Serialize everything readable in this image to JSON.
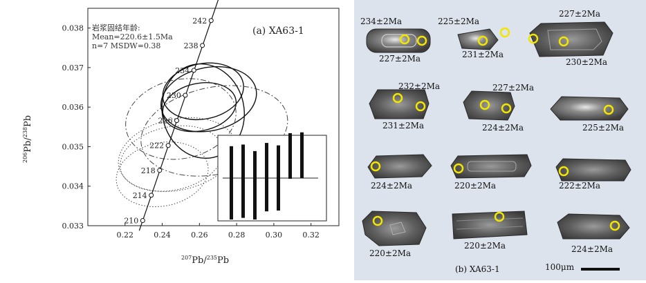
{
  "panel_a": {
    "panel_label": "(a) XA63-1",
    "annotation": {
      "title": "岩浆固结年龄:",
      "mean": "Mean=220.6±1.5Ma",
      "stats": "n=7 MSDW=0.38"
    },
    "axes": {
      "xlabel_num_sup": "207",
      "xlabel_num": "Pb/",
      "xlabel_den_sup": "235",
      "xlabel_den": "Pb",
      "ylabel_num_sup": "206",
      "ylabel_num": "Pb/",
      "ylabel_den_sup": "238",
      "ylabel_den": "Pb"
    }
  },
  "chart_data": {
    "type": "scatter",
    "subtype": "concordia",
    "xlabel": "207Pb/235Pb",
    "ylabel": "206Pb/238Pb",
    "xlim": [
      0.2,
      0.335
    ],
    "ylim": [
      0.033,
      0.0385
    ],
    "x_ticks": [
      "0.22",
      "0.24",
      "0.26",
      "0.28",
      "0.30",
      "0.32"
    ],
    "y_ticks": [
      "0.033",
      "0.034",
      "0.035",
      "0.036",
      "0.037",
      "0.038"
    ],
    "concordia_ticks": [
      {
        "age": "210",
        "x": 0.2295,
        "y": 0.03313
      },
      {
        "age": "214",
        "x": 0.2341,
        "y": 0.03377
      },
      {
        "age": "218",
        "x": 0.2386,
        "y": 0.0344
      },
      {
        "age": "222",
        "x": 0.2432,
        "y": 0.03503
      },
      {
        "age": "226",
        "x": 0.2478,
        "y": 0.03566
      },
      {
        "age": "230",
        "x": 0.2524,
        "y": 0.0363
      },
      {
        "age": "234",
        "x": 0.257,
        "y": 0.03693
      },
      {
        "age": "238",
        "x": 0.2616,
        "y": 0.03756
      },
      {
        "age": "242",
        "x": 0.2663,
        "y": 0.03819
      }
    ],
    "error_ellipses": [
      {
        "cx": 0.262,
        "cy": 0.0364,
        "rx": 0.022,
        "ry": 0.0007,
        "style": "solid"
      },
      {
        "cx": 0.265,
        "cy": 0.0362,
        "rx": 0.026,
        "ry": 0.0008,
        "style": "solid"
      },
      {
        "cx": 0.26,
        "cy": 0.036,
        "rx": 0.02,
        "ry": 0.0006,
        "style": "solid"
      },
      {
        "cx": 0.25,
        "cy": 0.0357,
        "rx": 0.03,
        "ry": 0.001,
        "style": "dashdot"
      },
      {
        "cx": 0.268,
        "cy": 0.0354,
        "rx": 0.04,
        "ry": 0.0011,
        "style": "dashdot"
      },
      {
        "cx": 0.262,
        "cy": 0.0359,
        "rx": 0.022,
        "ry": 0.0012,
        "style": "solid"
      },
      {
        "cx": 0.245,
        "cy": 0.0347,
        "rx": 0.028,
        "ry": 0.0008,
        "style": "dotted"
      },
      {
        "cx": 0.24,
        "cy": 0.0343,
        "rx": 0.025,
        "ry": 0.0008,
        "style": "dotted"
      },
      {
        "cx": 0.248,
        "cy": 0.0348,
        "rx": 0.032,
        "ry": 0.0009,
        "style": "dotted"
      }
    ],
    "inset_bars": [
      {
        "mid": 0.45,
        "half": 0.45
      },
      {
        "mid": 0.47,
        "half": 0.45
      },
      {
        "mid": 0.42,
        "half": 0.42
      },
      {
        "mid": 0.52,
        "half": 0.42
      },
      {
        "mid": 0.51,
        "half": 0.4
      },
      {
        "mid": 0.78,
        "half": 0.28
      },
      {
        "mid": 0.79,
        "half": 0.28
      }
    ],
    "inset_mean_line": 0.5
  },
  "panel_b": {
    "caption": "(b) XA63-1",
    "scale_label": "100μm",
    "grains": [
      {
        "labels": [
          "234±2Ma",
          "227±2Ma"
        ]
      },
      {
        "labels": [
          "225±2Ma",
          "231±2Ma"
        ]
      },
      {
        "labels": [
          "227±2Ma",
          "230±2Ma"
        ]
      },
      {
        "labels": [
          "232±2Ma",
          "231±2Ma"
        ]
      },
      {
        "labels": [
          "227±2Ma",
          "224±2Ma"
        ]
      },
      {
        "labels": [
          "225±2Ma"
        ]
      },
      {
        "labels": [
          "224±2Ma"
        ]
      },
      {
        "labels": [
          "220±2Ma"
        ]
      },
      {
        "labels": [
          "222±2Ma"
        ]
      },
      {
        "labels": [
          "220±2Ma"
        ]
      },
      {
        "labels": [
          "220±2Ma"
        ]
      },
      {
        "labels": [
          "224±2Ma"
        ]
      }
    ]
  }
}
